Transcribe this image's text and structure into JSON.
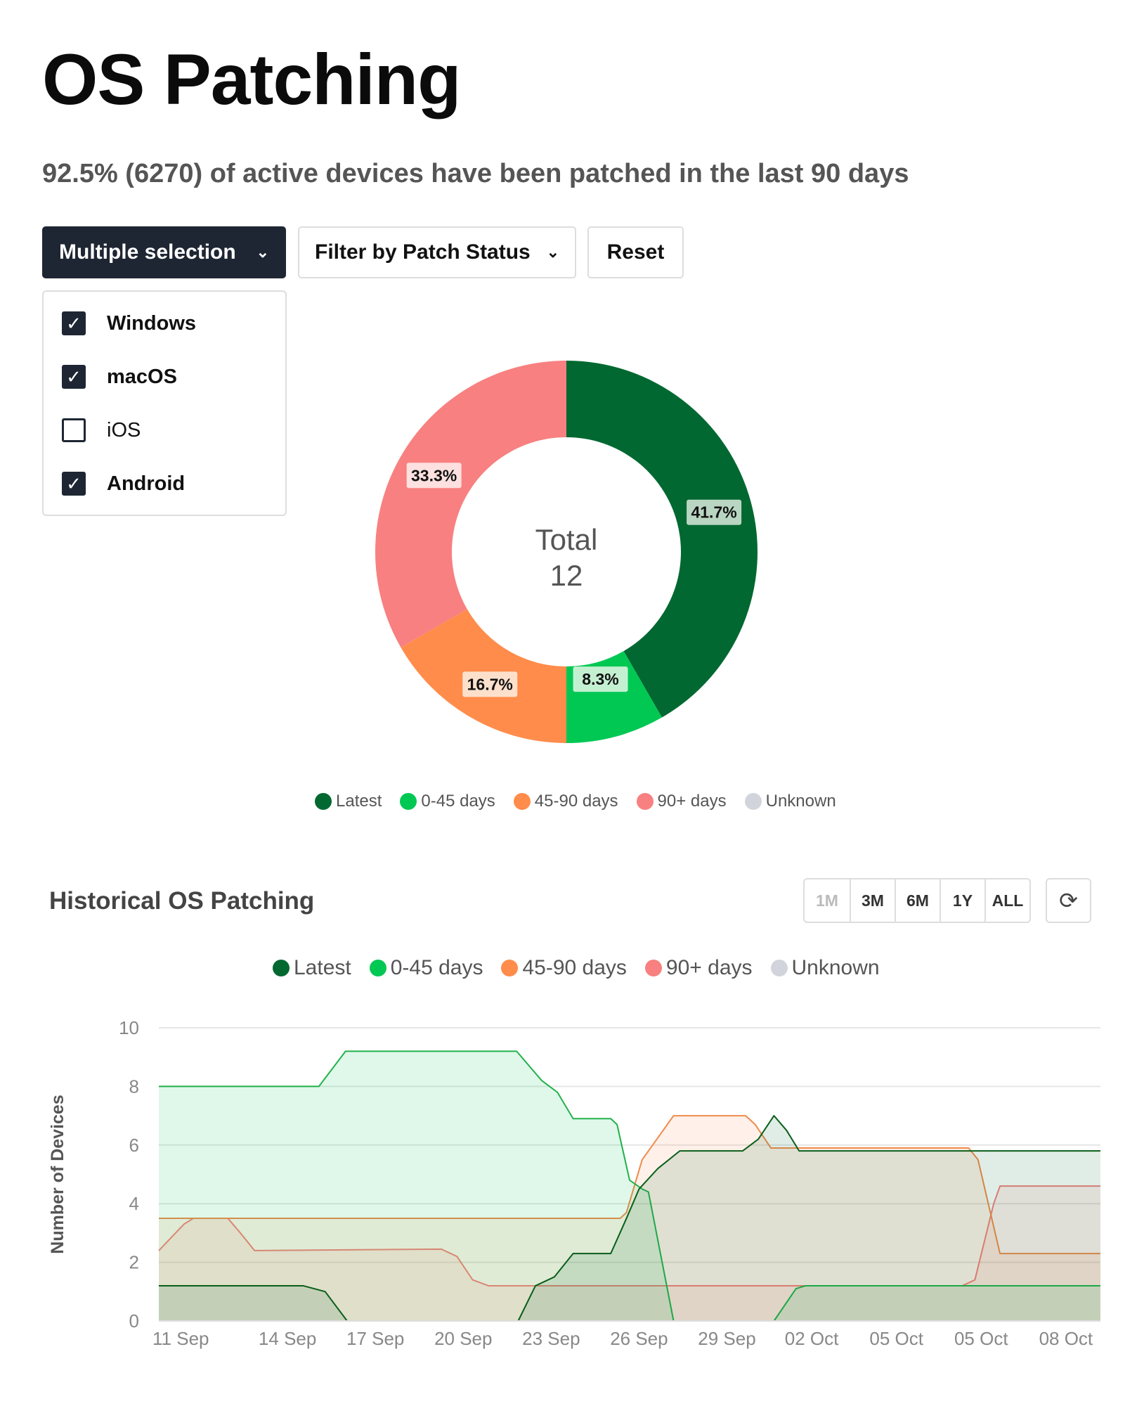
{
  "header": {
    "title": "OS Patching",
    "subtitle": "92.5% (6270) of active devices have been patched in the last 90 days"
  },
  "toolbar": {
    "multi_label": "Multiple selection",
    "filter_label": "Filter by Patch Status",
    "reset_label": "Reset"
  },
  "os_options": [
    {
      "label": "Windows",
      "checked": true
    },
    {
      "label": "macOS",
      "checked": true
    },
    {
      "label": "iOS",
      "checked": false
    },
    {
      "label": "Android",
      "checked": true
    }
  ],
  "colors": {
    "Latest": "#006830",
    "0-45 days": "#00c853",
    "45-90 days": "#ff8c4b",
    "90+ days": "#f88080",
    "Unknown": "#d1d5db"
  },
  "legend": [
    "Latest",
    "0-45 days",
    "45-90 days",
    "90+ days",
    "Unknown"
  ],
  "chart_data": [
    {
      "type": "pie",
      "title": "Total",
      "total": "12",
      "categories": [
        "Latest",
        "0-45 days",
        "45-90 days",
        "90+ days",
        "Unknown"
      ],
      "values": [
        5,
        1,
        2,
        4,
        0
      ],
      "labels": [
        "41.7%",
        "8.3%",
        "16.7%",
        "33.3%",
        ""
      ]
    },
    {
      "type": "area",
      "title": "Historical OS Patching",
      "ylabel": "Number of Devices",
      "ylim": [
        0,
        10
      ],
      "yticks": [
        "0",
        "2",
        "4",
        "6",
        "8",
        "10"
      ],
      "xlim": [
        0,
        30
      ],
      "xticks": [
        {
          "x": 0.7,
          "label": "11 Sep"
        },
        {
          "x": 4.1,
          "label": "14 Sep"
        },
        {
          "x": 6.9,
          "label": "17 Sep"
        },
        {
          "x": 9.7,
          "label": "20 Sep"
        },
        {
          "x": 12.5,
          "label": "23 Sep"
        },
        {
          "x": 15.3,
          "label": "26 Sep"
        },
        {
          "x": 18.1,
          "label": "29 Sep"
        },
        {
          "x": 20.8,
          "label": "02 Oct"
        },
        {
          "x": 23.5,
          "label": "05 Oct"
        },
        {
          "x": 26.2,
          "label": "05 Oct"
        },
        {
          "x": 28.9,
          "label": "08 Oct"
        }
      ],
      "series": [
        {
          "name": "90+ days",
          "points": [
            [
              0,
              2.4
            ],
            [
              0.8,
              3.3
            ],
            [
              1.1,
              3.5
            ],
            [
              2.2,
              3.5
            ],
            [
              2.6,
              3.0
            ],
            [
              3.05,
              2.4
            ],
            [
              9.0,
              2.45
            ],
            [
              9.5,
              2.2
            ],
            [
              10.0,
              1.4
            ],
            [
              10.5,
              1.2
            ],
            [
              25.6,
              1.2
            ],
            [
              26.0,
              1.4
            ],
            [
              26.6,
              4.0
            ],
            [
              26.8,
              4.6
            ],
            [
              30,
              4.6
            ]
          ]
        },
        {
          "name": "45-90 days",
          "points": [
            [
              0,
              3.5
            ],
            [
              14.7,
              3.5
            ],
            [
              14.9,
              3.7
            ],
            [
              15.4,
              5.5
            ],
            [
              16.4,
              7.0
            ],
            [
              18.7,
              7.0
            ],
            [
              19.0,
              6.7
            ],
            [
              19.5,
              5.9
            ],
            [
              25.8,
              5.9
            ],
            [
              26.1,
              5.5
            ],
            [
              26.8,
              2.3
            ],
            [
              30,
              2.3
            ]
          ]
        },
        {
          "name": "0-45 days",
          "points": [
            [
              0,
              8
            ],
            [
              5.1,
              8
            ],
            [
              5.95,
              9.2
            ],
            [
              11.4,
              9.2
            ],
            [
              12.2,
              8.2
            ],
            [
              12.7,
              7.8
            ],
            [
              13.2,
              6.9
            ],
            [
              14.4,
              6.9
            ],
            [
              14.6,
              6.7
            ],
            [
              15.0,
              4.8
            ],
            [
              15.4,
              4.5
            ],
            [
              15.6,
              4.4
            ],
            [
              16.4,
              0
            ],
            [
              19.6,
              0
            ],
            [
              20.3,
              1.1
            ],
            [
              20.6,
              1.2
            ],
            [
              30,
              1.2
            ]
          ]
        },
        {
          "name": "Latest",
          "points": [
            [
              0,
              1.2
            ],
            [
              4.6,
              1.2
            ],
            [
              5.3,
              1.0
            ],
            [
              6.0,
              0
            ],
            [
              11.45,
              0
            ],
            [
              12.0,
              1.2
            ],
            [
              12.6,
              1.5
            ],
            [
              13.2,
              2.3
            ],
            [
              14.4,
              2.3
            ],
            [
              14.9,
              3.5
            ],
            [
              15.3,
              4.5
            ],
            [
              15.9,
              5.2
            ],
            [
              16.6,
              5.8
            ],
            [
              18.6,
              5.8
            ],
            [
              19.1,
              6.2
            ],
            [
              19.6,
              7.0
            ],
            [
              20.0,
              6.5
            ],
            [
              20.4,
              5.8
            ],
            [
              30,
              5.8
            ]
          ]
        },
        {
          "name": "Unknown",
          "points": []
        }
      ]
    }
  ],
  "history": {
    "title": "Historical OS Patching",
    "ranges": [
      "1M",
      "3M",
      "6M",
      "1Y",
      "ALL"
    ],
    "refresh_icon": "refresh-icon"
  }
}
